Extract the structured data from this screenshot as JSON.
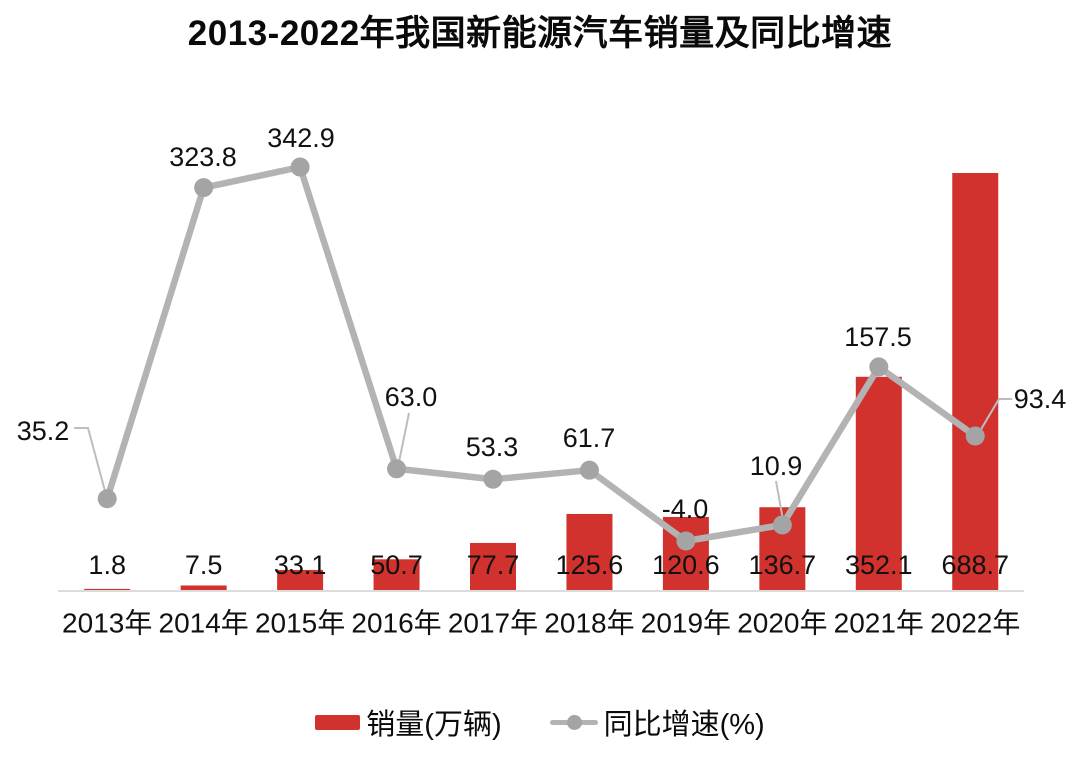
{
  "chart_data": {
    "type": "combo-bar-line",
    "title": "2013-2022年我国新能源汽车销量及同比增速",
    "categories": [
      "2013年",
      "2014年",
      "2015年",
      "2016年",
      "2017年",
      "2018年",
      "2019年",
      "2020年",
      "2021年",
      "2022年"
    ],
    "series": [
      {
        "name": "销量(万辆)",
        "type": "bar",
        "values": [
          1.8,
          7.5,
          33.1,
          50.7,
          77.7,
          125.6,
          120.6,
          136.7,
          352.1,
          688.7
        ]
      },
      {
        "name": "同比增速(%)",
        "type": "line",
        "values": [
          35.2,
          323.8,
          342.9,
          63.0,
          53.3,
          61.7,
          -4.0,
          10.9,
          157.5,
          93.4
        ]
      }
    ],
    "value_label_decimals": 1,
    "xlabel": "",
    "ylabel": "",
    "grid": false,
    "axes_shown": "x-baseline-only",
    "legend_position": "bottom"
  },
  "legend": {
    "items": [
      {
        "label": "销量(万辆)",
        "swatch": "bar-swatch"
      },
      {
        "label": "同比增速(%)",
        "swatch": "line-swatch"
      }
    ]
  },
  "colors": {
    "bar_red": "#d2322d",
    "line_gray": "#b3b3b3",
    "marker_gray": "#a4a4a4",
    "leader_gray": "#bdbdbd",
    "axis_gray": "#dcdcdc",
    "text_black": "#111111"
  }
}
